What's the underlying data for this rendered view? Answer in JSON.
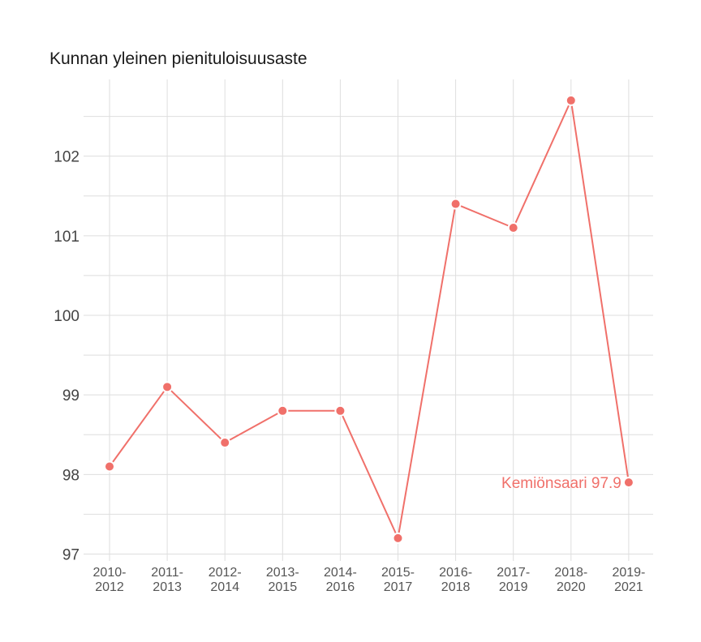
{
  "chart_data": {
    "type": "line",
    "title": "Kunnan yleinen pienituloisuusaste",
    "xlabel": "",
    "ylabel": "",
    "categories": [
      [
        "2010-",
        "2012"
      ],
      [
        "2011-",
        "2013"
      ],
      [
        "2012-",
        "2014"
      ],
      [
        "2013-",
        "2015"
      ],
      [
        "2014-",
        "2016"
      ],
      [
        "2015-",
        "2017"
      ],
      [
        "2016-",
        "2018"
      ],
      [
        "2017-",
        "2019"
      ],
      [
        "2018-",
        "2020"
      ],
      [
        "2019-",
        "2021"
      ]
    ],
    "series": [
      {
        "values": [
          98.1,
          99.1,
          98.4,
          98.8,
          98.8,
          97.2,
          101.4,
          101.1,
          102.7,
          97.9
        ],
        "color": "#f0706a"
      }
    ],
    "ylim": [
      97,
      103
    ],
    "yticks": [
      97,
      98,
      99,
      100,
      101,
      102
    ],
    "grid": true,
    "annotation": {
      "text": "Kemiönsaari 97.9",
      "index": 9
    }
  }
}
